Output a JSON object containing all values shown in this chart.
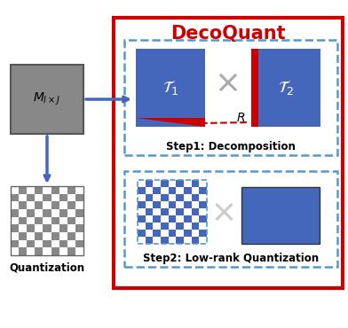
{
  "title": "DecoQuant",
  "title_color": "#CC0000",
  "bg_color": "#ffffff",
  "outer_box_color": "#CC0000",
  "dashed_box_color": "#5599CC",
  "blue_rect_color": "#4466BB",
  "gray_rect_color": "#888888",
  "red_strip_color": "#CC0000",
  "arrow_color": "#4466BB",
  "step1_label": "Step1: Decomposition",
  "step2_label": "Step2: Low-rank Quantization",
  "quant_label": "Quantization",
  "matrix_label": "$M_{I\\times J}$",
  "T1_label": "$\\mathcal{T}_1$",
  "T2_label": "$\\mathcal{T}_2$",
  "R_label": "$R$",
  "figw": 3.92,
  "figh": 3.7,
  "dpi": 100
}
